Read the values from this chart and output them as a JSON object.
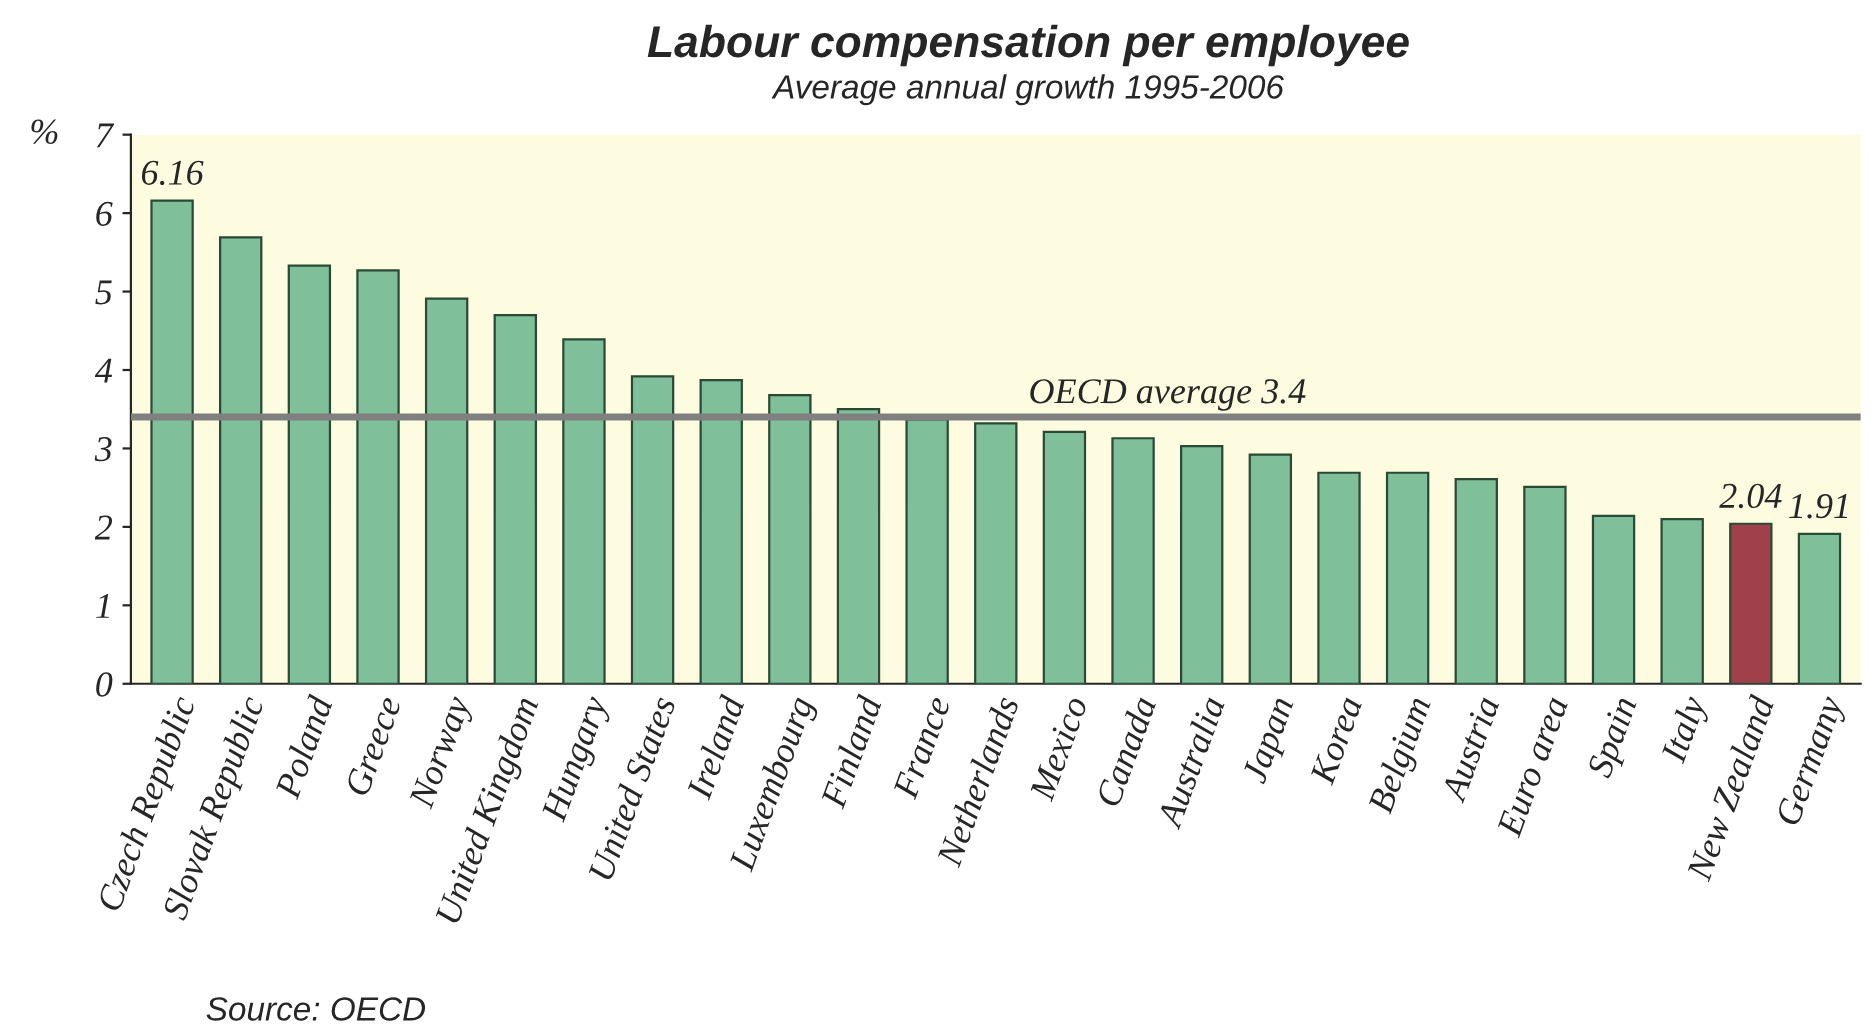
{
  "chart_data": {
    "type": "bar",
    "title": "Labour compensation per employee",
    "subtitle": "Average annual growth 1995-2006",
    "ylabel": "%",
    "categories": [
      "Czech Republic",
      "Slovak Republic",
      "Poland",
      "Greece",
      "Norway",
      "United Kingdom",
      "Hungary",
      "United States",
      "Ireland",
      "Luxembourg",
      "Finland",
      "France",
      "Netherlands",
      "Mexico",
      "Canada",
      "Australia",
      "Japan",
      "Korea",
      "Belgium",
      "Austria",
      "Euro area",
      "Spain",
      "Italy",
      "New Zealand",
      "Germany"
    ],
    "values": [
      6.16,
      5.69,
      5.33,
      5.27,
      4.91,
      4.7,
      4.39,
      3.92,
      3.87,
      3.68,
      3.5,
      3.37,
      3.32,
      3.21,
      3.13,
      3.03,
      2.92,
      2.69,
      2.69,
      2.61,
      2.51,
      2.14,
      2.1,
      2.04,
      1.91
    ],
    "colors": [
      "#7fbf9a",
      "#7fbf9a",
      "#7fbf9a",
      "#7fbf9a",
      "#7fbf9a",
      "#7fbf9a",
      "#7fbf9a",
      "#7fbf9a",
      "#7fbf9a",
      "#7fbf9a",
      "#7fbf9a",
      "#7fbf9a",
      "#7fbf9a",
      "#7fbf9a",
      "#7fbf9a",
      "#7fbf9a",
      "#7fbf9a",
      "#7fbf9a",
      "#7fbf9a",
      "#7fbf9a",
      "#7fbf9a",
      "#7fbf9a",
      "#7fbf9a",
      "#a0404a",
      "#7fbf9a"
    ],
    "value_labels": [
      "6.16",
      null,
      null,
      null,
      null,
      null,
      null,
      null,
      null,
      null,
      null,
      null,
      null,
      null,
      null,
      null,
      null,
      null,
      null,
      null,
      null,
      null,
      null,
      "2.04",
      "1.91"
    ],
    "ylim": [
      0,
      7
    ],
    "yticks": [
      0,
      1,
      2,
      3,
      4,
      5,
      6,
      7
    ],
    "grid": false,
    "legend": false,
    "ref_lines": [
      {
        "axis": "y",
        "value": 3.4,
        "label": "OECD average 3.4",
        "color": "#808080"
      }
    ],
    "annotations": [
      "Source: OECD"
    ]
  }
}
